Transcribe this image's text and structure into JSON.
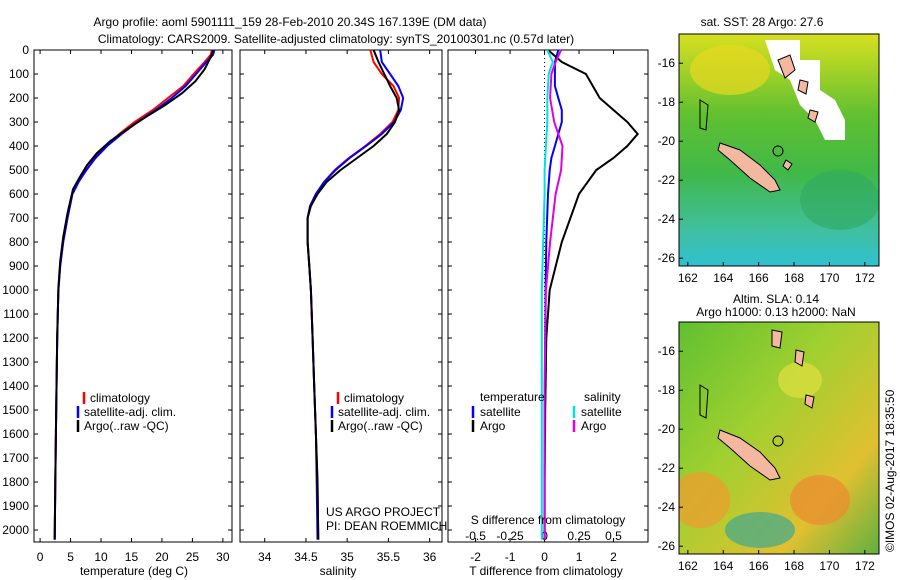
{
  "header": {
    "title_line1": "Argo profile: aoml 5901111_159 28-Feb-2010 20.34S 167.139E (DM data)",
    "title_line2": "Climatology: CARS2009. Satellite-adjusted climatology: synTS_20100301.nc (0.57d later)"
  },
  "colors": {
    "climatology": "#ff0000",
    "satellite": "#0000ff",
    "argo": "#000000",
    "satellite_s": "#00e0e0",
    "argo_s": "#e000e0",
    "land": "#f4b8a0"
  },
  "y_axis": {
    "ticks": [
      0,
      100,
      200,
      300,
      400,
      500,
      600,
      700,
      800,
      900,
      1000,
      1100,
      1200,
      1300,
      1400,
      1500,
      1600,
      1700,
      1800,
      1900,
      2000
    ],
    "range": [
      0,
      2050
    ]
  },
  "chart_data": [
    {
      "type": "line",
      "xlabel": "temperature (deg C)",
      "xlim": [
        -1,
        31.5
      ],
      "xticks": [
        0,
        5,
        10,
        15,
        20,
        25,
        30
      ],
      "legend": [
        "climatology",
        "satellite-adj. clim.",
        "Argo(..raw -QC)"
      ],
      "legend_placement": "lower-center",
      "series": [
        {
          "name": "climatology",
          "color": "#ff0000",
          "x": [
            28.2,
            28.0,
            27.0,
            25.2,
            23.5,
            21.0,
            18.5,
            15.5,
            13.0,
            10.8,
            9.0,
            7.6,
            6.3,
            5.3,
            4.5,
            3.8,
            3.3,
            3.0,
            2.8,
            2.65,
            2.5,
            2.4
          ],
          "y": [
            0,
            20,
            50,
            100,
            150,
            200,
            250,
            300,
            350,
            400,
            450,
            500,
            550,
            600,
            700,
            800,
            900,
            1000,
            1200,
            1500,
            1800,
            2040
          ]
        },
        {
          "name": "satellite-adj. clim.",
          "color": "#0000ff",
          "x": [
            28.6,
            28.4,
            27.3,
            25.6,
            23.9,
            21.6,
            19.0,
            16.0,
            13.4,
            11.0,
            9.1,
            7.6,
            6.3,
            5.3,
            4.5,
            3.8,
            3.3,
            3.0,
            2.8,
            2.65,
            2.5,
            2.4
          ],
          "y": [
            0,
            20,
            50,
            100,
            150,
            200,
            250,
            300,
            350,
            400,
            450,
            500,
            550,
            600,
            700,
            800,
            900,
            1000,
            1200,
            1500,
            1800,
            2040
          ]
        },
        {
          "name": "Argo(..raw -QC)",
          "color": "#000000",
          "x": [
            28.3,
            28.3,
            28.0,
            27.0,
            25.5,
            23.3,
            20.5,
            17.3,
            14.3,
            11.5,
            9.3,
            7.7,
            6.5,
            5.4,
            4.5,
            3.8,
            3.3,
            3.0,
            2.8,
            2.65,
            2.5,
            2.4
          ],
          "y": [
            0,
            10,
            30,
            80,
            130,
            180,
            230,
            280,
            330,
            380,
            430,
            480,
            530,
            580,
            680,
            780,
            880,
            990,
            1200,
            1500,
            1800,
            2040
          ]
        }
      ]
    },
    {
      "type": "line",
      "xlabel": "salinity",
      "xlim": [
        33.7,
        36.15
      ],
      "xticks": [
        34,
        34.5,
        35,
        35.5,
        36
      ],
      "legend": [
        "climatology",
        "satellite-adj. clim.",
        "Argo(..raw -QC)"
      ],
      "legend_placement": "lower-center",
      "annotation": [
        "US ARGO PROJECT",
        "PI: DEAN ROEMMICH"
      ],
      "series": [
        {
          "name": "climatology",
          "color": "#ff0000",
          "x": [
            35.28,
            35.32,
            35.42,
            35.56,
            35.63,
            35.62,
            35.55,
            35.4,
            35.22,
            35.02,
            34.85,
            34.72,
            34.62,
            34.55,
            34.52,
            34.52,
            34.54,
            34.56,
            34.58,
            34.6,
            34.62,
            34.64,
            34.65
          ],
          "y": [
            0,
            50,
            100,
            150,
            200,
            250,
            300,
            350,
            400,
            450,
            500,
            550,
            600,
            650,
            700,
            800,
            900,
            1000,
            1200,
            1400,
            1600,
            1800,
            2040
          ]
        },
        {
          "name": "satellite-adj. clim.",
          "color": "#0000ff",
          "x": [
            35.4,
            35.42,
            35.52,
            35.62,
            35.68,
            35.65,
            35.57,
            35.42,
            35.23,
            35.03,
            34.86,
            34.72,
            34.62,
            34.55,
            34.52,
            34.52,
            34.54,
            34.56,
            34.58,
            34.6,
            34.62,
            34.63,
            34.64
          ],
          "y": [
            0,
            50,
            100,
            150,
            200,
            250,
            300,
            350,
            400,
            450,
            500,
            550,
            600,
            650,
            700,
            800,
            900,
            1000,
            1200,
            1400,
            1600,
            1800,
            2040
          ]
        },
        {
          "name": "Argo(..raw -QC)",
          "color": "#000000",
          "x": [
            35.32,
            35.38,
            35.45,
            35.52,
            35.6,
            35.63,
            35.58,
            35.48,
            35.32,
            35.12,
            34.92,
            34.75,
            34.64,
            34.56,
            34.52,
            34.52,
            34.54,
            34.56,
            34.58,
            34.6,
            34.62,
            34.64,
            34.65
          ],
          "y": [
            0,
            50,
            100,
            150,
            200,
            250,
            300,
            350,
            400,
            450,
            500,
            550,
            600,
            650,
            700,
            800,
            900,
            1000,
            1200,
            1400,
            1600,
            1800,
            2040
          ]
        }
      ]
    },
    {
      "type": "line",
      "xlabel": "T difference from climatology",
      "xlabel_top": "S difference from climatology",
      "xlim": [
        -2.8,
        3.0
      ],
      "xticks": [
        -2,
        -1,
        0,
        1,
        2
      ],
      "xticks_s": [
        "-0.5",
        "-0.25",
        "0",
        "0.25",
        "0.5"
      ],
      "legend_t": {
        "title": "temperature",
        "items": [
          "satellite",
          "Argo"
        ]
      },
      "legend_s": {
        "title": "salinity",
        "items": [
          "satellite",
          "Argo"
        ]
      },
      "series": [
        {
          "name": "satellite",
          "quantity": "temperature",
          "color": "#0000ff",
          "x": [
            0.4,
            0.3,
            0.3,
            0.3,
            0.4,
            0.5,
            0.5,
            0.4,
            0.3,
            0.2,
            0.15,
            0.1,
            0.05,
            0.03,
            0.02,
            0.01,
            0.0,
            0.0
          ],
          "y": [
            0,
            50,
            100,
            150,
            200,
            250,
            300,
            350,
            400,
            450,
            500,
            600,
            800,
            1000,
            1200,
            1500,
            1800,
            2040
          ]
        },
        {
          "name": "Argo",
          "quantity": "temperature",
          "color": "#000000",
          "x": [
            0.1,
            0.5,
            1.2,
            1.4,
            1.6,
            2.0,
            2.4,
            2.7,
            2.4,
            2.0,
            1.5,
            1.0,
            0.5,
            0.15,
            0.05,
            0.02,
            0.0,
            0.0
          ],
          "y": [
            0,
            50,
            100,
            150,
            200,
            250,
            300,
            350,
            400,
            450,
            500,
            600,
            800,
            1000,
            1200,
            1500,
            1800,
            2040
          ]
        },
        {
          "name": "satellite",
          "quantity": "salinity",
          "color": "#00e0e0",
          "x": [
            0.02,
            0.06,
            0.03,
            0.02,
            0.02,
            0.01,
            0.0,
            0.0,
            -0.01,
            -0.02,
            -0.02,
            -0.02,
            -0.02,
            -0.02
          ],
          "y": [
            0,
            50,
            100,
            200,
            300,
            400,
            500,
            600,
            800,
            1000,
            1400,
            1700,
            1900,
            2040
          ]
        },
        {
          "name": "Argo",
          "quantity": "salinity",
          "color": "#e000e0",
          "x": [
            0.12,
            0.08,
            0.05,
            0.04,
            0.07,
            0.13,
            0.12,
            0.08,
            0.04,
            0.01,
            0.0,
            0.0,
            0.0
          ],
          "y": [
            0,
            50,
            100,
            200,
            300,
            400,
            500,
            600,
            800,
            1000,
            1400,
            1700,
            2040
          ]
        }
      ]
    },
    {
      "type": "heatmap",
      "title": "sat. SST: 28 Argo: 27.6",
      "xticks": [
        162,
        164,
        166,
        168,
        170,
        172
      ],
      "yticks": [
        -16,
        -18,
        -20,
        -22,
        -24,
        -26
      ],
      "xlim": [
        161.5,
        172.8
      ],
      "ylim": [
        -26.4,
        -14.5
      ],
      "argo_position": {
        "lon": 167.139,
        "lat": -20.34
      }
    },
    {
      "type": "heatmap",
      "title_line1": "Altim. SLA: 0.14",
      "title_line2": "Argo h1000: 0.13 h2000: NaN",
      "xticks": [
        162,
        164,
        166,
        168,
        170,
        172
      ],
      "yticks": [
        -16,
        -18,
        -20,
        -22,
        -24,
        -26
      ],
      "xlim": [
        161.5,
        172.8
      ],
      "ylim": [
        -26.4,
        -14.5
      ],
      "argo_position": {
        "lon": 167.139,
        "lat": -20.34
      }
    }
  ],
  "footer": {
    "credit": "©IMOS 02-Aug-2017 18:35:50"
  }
}
